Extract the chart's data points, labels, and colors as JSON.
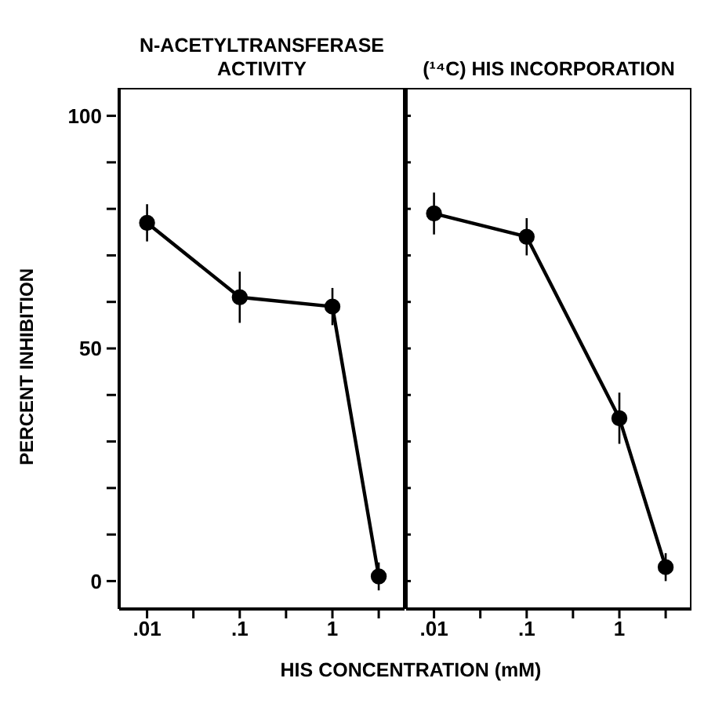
{
  "chart_data": [
    {
      "type": "line",
      "title": "N-ACETYLTRANSFERASE ACTIVITY",
      "xlabel": "HIS CONCENTRATION (mM)",
      "ylabel": "PERCENT INHIBITION",
      "x": [
        0.01,
        0.1,
        1,
        3.16
      ],
      "series": [
        {
          "color": "#000000",
          "values": [
            77,
            61,
            59,
            1
          ],
          "errors": [
            4,
            5.5,
            4,
            3
          ]
        }
      ],
      "xlim": [
        0.005,
        6
      ],
      "xticks": [
        {
          "value": 0.01,
          "label": ".01"
        },
        {
          "value": 0.0316,
          "label": null
        },
        {
          "value": 0.1,
          "label": ".1"
        },
        {
          "value": 0.316,
          "label": null
        },
        {
          "value": 1,
          "label": "1"
        },
        {
          "value": 3.16,
          "label": null
        }
      ],
      "ylim": [
        -6,
        106
      ],
      "yticks": [
        0,
        {
          "value": 10,
          "label": null
        },
        {
          "value": 20,
          "label": null
        },
        {
          "value": 30,
          "label": null
        },
        {
          "value": 40,
          "label": null
        },
        50,
        {
          "value": 60,
          "label": null
        },
        {
          "value": 70,
          "label": null
        },
        {
          "value": 80,
          "label": null
        },
        {
          "value": 90,
          "label": null
        },
        100
      ],
      "log": "x",
      "grid": false,
      "legend": false,
      "marker": "circle",
      "line_style": "solid"
    },
    {
      "type": "line",
      "title": "(¹⁴C) HIS INCORPORATION",
      "x": [
        0.01,
        0.1,
        1,
        3.16
      ],
      "series": [
        {
          "color": "#000000",
          "values": [
            79,
            74,
            35,
            3
          ],
          "errors": [
            4.5,
            4,
            5.5,
            3
          ]
        }
      ],
      "xlim": [
        0.005,
        6
      ],
      "xticks": [
        {
          "value": 0.01,
          "label": ".01"
        },
        {
          "value": 0.0316,
          "label": null
        },
        {
          "value": 0.1,
          "label": ".1"
        },
        {
          "value": 0.316,
          "label": null
        },
        {
          "value": 1,
          "label": "1"
        },
        {
          "value": 3.16,
          "label": null
        }
      ],
      "ylim": [
        -6,
        106
      ],
      "yticks": [
        0,
        {
          "value": 10,
          "label": null
        },
        {
          "value": 20,
          "label": null
        },
        {
          "value": 30,
          "label": null
        },
        {
          "value": 40,
          "label": null
        },
        50,
        {
          "value": 60,
          "label": null
        },
        {
          "value": 70,
          "label": null
        },
        {
          "value": 80,
          "label": null
        },
        {
          "value": 90,
          "label": null
        },
        100
      ],
      "tick_labels": "x",
      "log": "x",
      "grid": false,
      "legend": false,
      "marker": "circle",
      "line_style": "solid"
    }
  ]
}
